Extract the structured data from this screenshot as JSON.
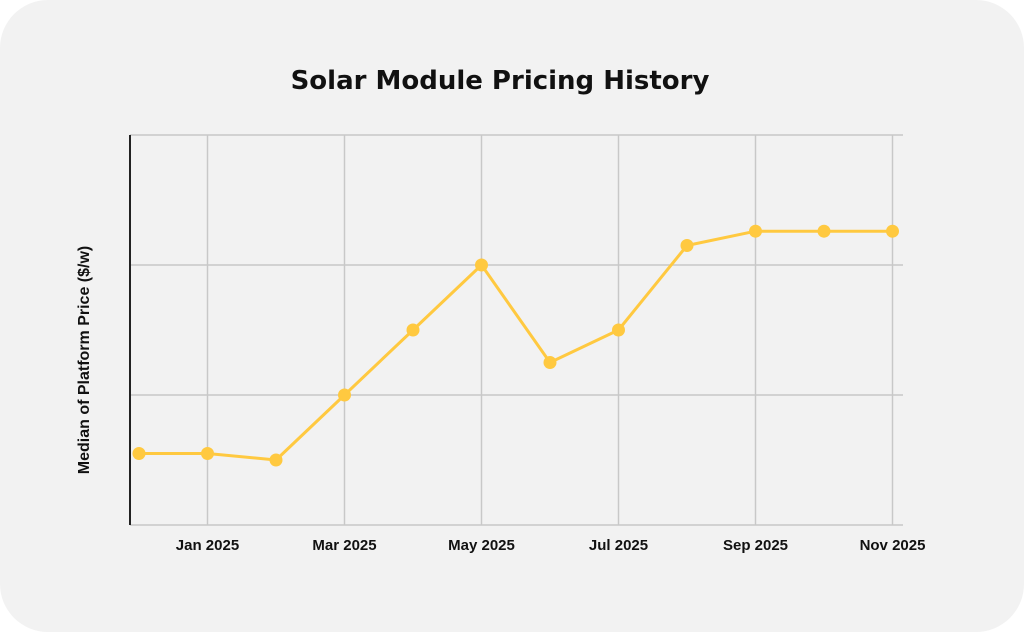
{
  "chart_data": {
    "type": "line",
    "title": "Solar Module Pricing History",
    "xlabel": "",
    "ylabel": "Median of Platform Price ($/w)",
    "x": [
      "Dec 2024",
      "Jan 2025",
      "Feb 2025",
      "Mar 2025",
      "Apr 2025",
      "May 2025",
      "Jun 2025",
      "Jul 2025",
      "Aug 2025",
      "Sep 2025",
      "Oct 2025",
      "Nov 2025"
    ],
    "x_tick_labels": [
      "Jan 2025",
      "Mar 2025",
      "May 2025",
      "Jul 2025",
      "Sep 2025",
      "Nov 2025"
    ],
    "y_tick_labels": [],
    "y_units_note": "no y tick labels shown; values in gridline units",
    "ylim": [
      0,
      3
    ],
    "grid": true,
    "legend": "none",
    "series": [
      {
        "name": "Median of Platform Price ($/w)",
        "color": "#ffc940",
        "values": [
          0.55,
          0.55,
          0.5,
          1.0,
          1.5,
          2.0,
          1.25,
          1.5,
          2.15,
          2.26,
          2.26,
          2.26
        ]
      }
    ]
  },
  "colors": {
    "background": "#f2f2f2",
    "grid": "#c8c8c8",
    "axis": "#222222",
    "line": "#ffc940"
  }
}
